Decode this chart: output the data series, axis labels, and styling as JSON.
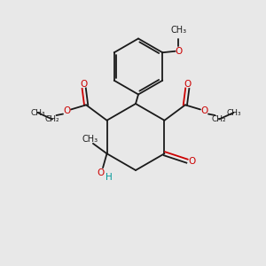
{
  "bg_color": "#e8e8e8",
  "bond_color": "#1a1a1a",
  "o_color": "#cc0000",
  "h_color": "#009999",
  "lw": 1.3,
  "font_size": 7.5,
  "fig_width": 3.0,
  "fig_height": 3.0,
  "xlim": [
    0,
    10
  ],
  "ylim": [
    0,
    10
  ]
}
